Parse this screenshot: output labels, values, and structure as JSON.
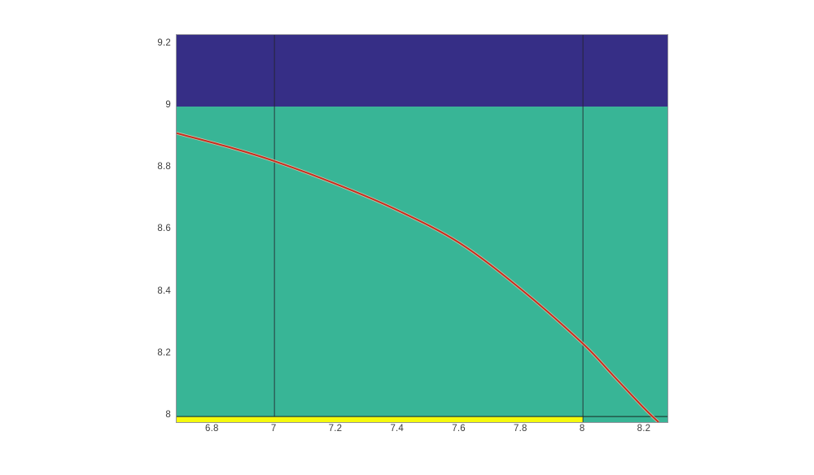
{
  "figure": {
    "background": "#ffffff"
  },
  "colors": {
    "region_upper": "#362e86",
    "region_main": "#38b596",
    "region_highlight": "#f5fa0d",
    "curve": "#c92a1d",
    "curve_halo": "#eac5a9",
    "vline": "#23232d",
    "hline": "#1c3930",
    "tick_text": "#3d3d3d",
    "axis_border": "#4a4a55"
  },
  "chart_data": {
    "type": "line",
    "title": "",
    "xlabel": "",
    "ylabel": "",
    "grid": false,
    "legend": null,
    "xlim": [
      6.683,
      8.274
    ],
    "ylim": [
      7.982,
      9.231
    ],
    "x_ticks": [
      6.8,
      7.0,
      7.2,
      7.4,
      7.6,
      7.8,
      8.0,
      8.2
    ],
    "x_tick_labels": [
      "6.8",
      "7",
      "7.2",
      "7.4",
      "7.6",
      "7.8",
      "8",
      "8.2"
    ],
    "y_ticks": [
      8.0,
      8.2,
      8.4,
      8.6,
      8.8,
      9.0,
      9.2
    ],
    "y_tick_labels": [
      "8",
      "8.2",
      "8.4",
      "8.6",
      "8.8",
      "9",
      "9.2"
    ],
    "regions": [
      {
        "name": "region-main-band",
        "x": [
          6.683,
          8.274
        ],
        "y": [
          7.982,
          9.0
        ],
        "color_key": "region_main"
      },
      {
        "name": "region-upper-band",
        "x": [
          6.683,
          8.274
        ],
        "y": [
          9.0,
          9.231
        ],
        "color_key": "region_upper"
      },
      {
        "name": "region-highlight-strip",
        "x": [
          6.683,
          8.0
        ],
        "y": [
          7.982,
          8.0
        ],
        "color_key": "region_highlight"
      }
    ],
    "hlines": [
      {
        "name": "hline-y8",
        "y": 8.0,
        "x": [
          6.683,
          8.274
        ],
        "color_key": "hline"
      }
    ],
    "vlines": [
      {
        "name": "vline-x7",
        "x": 7.0,
        "y": [
          8.0,
          9.231
        ],
        "color_key": "vline"
      },
      {
        "name": "vline-x8",
        "x": 8.0,
        "y": [
          7.982,
          9.231
        ],
        "color_key": "vline"
      }
    ],
    "series": [
      {
        "name": "f-curve",
        "color_key": "curve",
        "halo_color_key": "curve_halo",
        "x": [
          6.683,
          6.85,
          7.0,
          7.2,
          7.4,
          7.6,
          7.8,
          8.0,
          8.1,
          8.2,
          8.245
        ],
        "y": [
          8.914,
          8.87,
          8.824,
          8.75,
          8.665,
          8.56,
          8.41,
          8.235,
          8.13,
          8.025,
          7.982
        ]
      }
    ]
  }
}
